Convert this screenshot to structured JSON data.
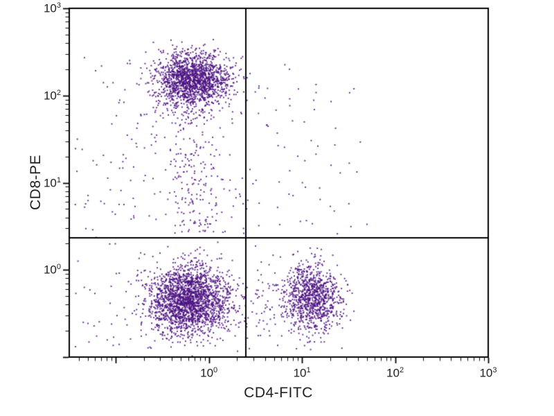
{
  "chart_data": {
    "type": "scatter",
    "title": "",
    "xlabel": "CD4-FITC",
    "ylabel": "CD8-PE",
    "x_scale": "log",
    "y_scale": "log",
    "x_range_exp": [
      -1.5,
      3
    ],
    "y_range_exp": [
      -1,
      3
    ],
    "x_major_ticks_exp": [
      0,
      1,
      2,
      3
    ],
    "y_major_ticks_exp": [
      0,
      1,
      2,
      3
    ],
    "tick_base": "10",
    "grid": false,
    "legend": "none",
    "quadrant_gate": {
      "x": 2.5,
      "y": 2.35
    },
    "point_color": "#4a1180",
    "point_size": 2,
    "seed": 42,
    "clusters": [
      {
        "name": "cd8-positive-dense",
        "count": 1600,
        "x": {
          "dist": "normal",
          "mean": -0.18,
          "sd": 0.2
        },
        "y": {
          "dist": "normal",
          "mean": 2.18,
          "sd": 0.16
        }
      },
      {
        "name": "cd8-positive-tail",
        "count": 240,
        "x": {
          "dist": "normal",
          "mean": -0.15,
          "sd": 0.2
        },
        "y": {
          "dist": "uniform",
          "min": 0.42,
          "max": 1.85
        }
      },
      {
        "name": "double-negative-dense",
        "count": 2100,
        "x": {
          "dist": "normal",
          "mean": -0.22,
          "sd": 0.22
        },
        "y": {
          "dist": "normal",
          "mean": -0.35,
          "sd": 0.2
        }
      },
      {
        "name": "cd4-positive-dense",
        "count": 950,
        "x": {
          "dist": "normal",
          "mean": 1.12,
          "sd": 0.15
        },
        "y": {
          "dist": "normal",
          "mean": -0.32,
          "sd": 0.2
        }
      },
      {
        "name": "upper-right-sparse",
        "count": 70,
        "x": {
          "dist": "uniform",
          "min": 0.3,
          "max": 1.7
        },
        "y": {
          "dist": "uniform",
          "min": 0.4,
          "max": 2.4
        }
      },
      {
        "name": "lower-bridge-sparse",
        "count": 120,
        "x": {
          "dist": "uniform",
          "min": 0.1,
          "max": 1.0
        },
        "y": {
          "dist": "normal",
          "mean": -0.35,
          "sd": 0.25
        }
      },
      {
        "name": "left-edge-sparse",
        "count": 110,
        "x": {
          "dist": "uniform",
          "min": -1.45,
          "max": -0.55
        },
        "y": {
          "dist": "uniform",
          "min": -0.95,
          "max": 2.45
        }
      }
    ]
  }
}
